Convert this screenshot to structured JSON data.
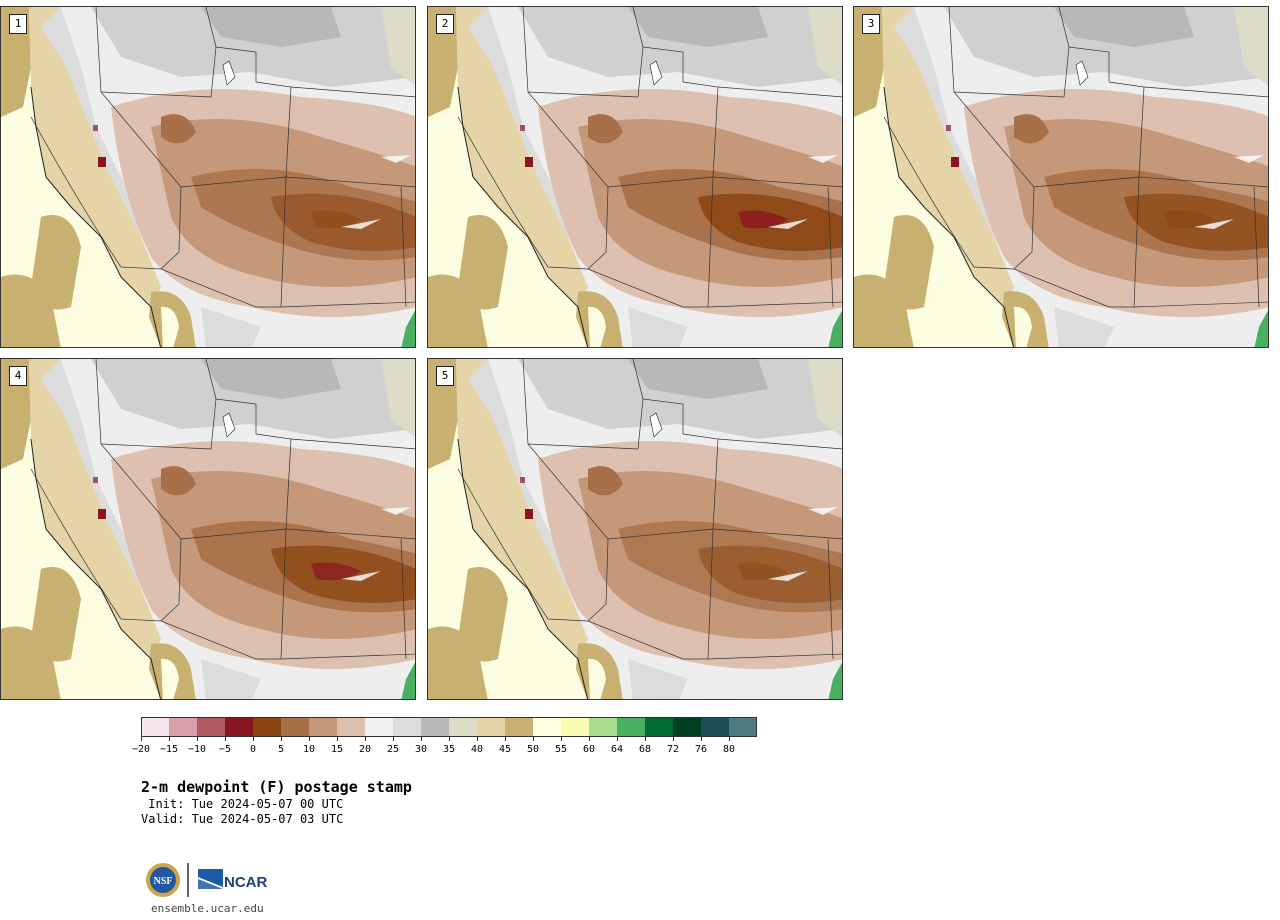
{
  "title": "2-m dewpoint (F) postage stamp",
  "init_line": " Init: Tue 2024-05-07 00 UTC",
  "valid_line": "Valid: Tue 2024-05-07 03 UTC",
  "url": "ensemble.ucar.edu",
  "logo": {
    "nsf": "NSF",
    "ncar": "NCAR"
  },
  "panels": [
    {
      "label": "1",
      "intensity": 0.55
    },
    {
      "label": "2",
      "intensity": 0.85
    },
    {
      "label": "3",
      "intensity": 0.7
    },
    {
      "label": "4",
      "intensity": 0.75
    },
    {
      "label": "5",
      "intensity": 0.5
    }
  ],
  "colorbar": {
    "ticks": [
      "−20",
      "−15",
      "−10",
      "−5",
      "0",
      "5",
      "10",
      "15",
      "20",
      "25",
      "30",
      "35",
      "40",
      "45",
      "50",
      "55",
      "60",
      "64",
      "68",
      "72",
      "76",
      "80"
    ],
    "colors": [
      "#f4e6e8",
      "#d8a0a6",
      "#b25a63",
      "#8a1420",
      "#8a4410",
      "#a87048",
      "#c49878",
      "#ddc0b0",
      "#f0f0f0",
      "#dcdcdc",
      "#b8b8b8",
      "#dcdcc8",
      "#e4d4a8",
      "#c8b070",
      "#fefee0",
      "#fafab0",
      "#a8dc90",
      "#48b060",
      "#006c34",
      "#004022",
      "#1c4e58",
      "#4e7c80"
    ]
  }
}
